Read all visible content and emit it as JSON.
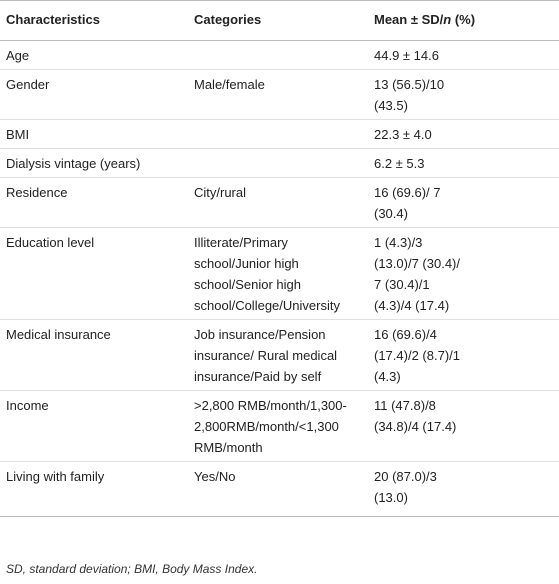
{
  "table": {
    "header": [
      "Characteristics",
      "Categories",
      [
        "Mean ± SD/",
        "n",
        " (%)"
      ]
    ],
    "rows": [
      [
        "Age",
        "",
        "44.9 ± 14.6"
      ],
      [
        "Gender",
        "Male/female",
        "13 (56.5)/10 (43.5)"
      ],
      [
        "BMI",
        "",
        "22.3 ± 4.0"
      ],
      [
        "Dialysis vintage (years)",
        "",
        "6.2 ± 5.3"
      ],
      [
        "Residence",
        "City/rural",
        "16 (69.6)/ 7 (30.4)"
      ],
      [
        "Education level",
        "Illiterate/Primary school/Junior high school/Senior high school/College/University",
        "1 (4.3)/3 (13.0)/7 (30.4)/ 7 (30.4)/1 (4.3)/4 (17.4)"
      ],
      [
        "Medical insurance",
        "Job insurance/Pension insurance/ Rural medical insurance/Paid by self",
        "16 (69.6)/4 (17.4)/2 (8.7)/1 (4.3)"
      ],
      [
        "Income",
        ">2,800 RMB/month/1,300-2,800RMB/month/<1,300 RMB/month",
        "11 (47.8)/8 (34.8)/4 (17.4)"
      ],
      [
        "Living with family",
        "Yes/No",
        "20 (87.0)/3 (13.0)"
      ]
    ]
  },
  "footnote": "SD, standard deviation; BMI, Body Mass Index."
}
